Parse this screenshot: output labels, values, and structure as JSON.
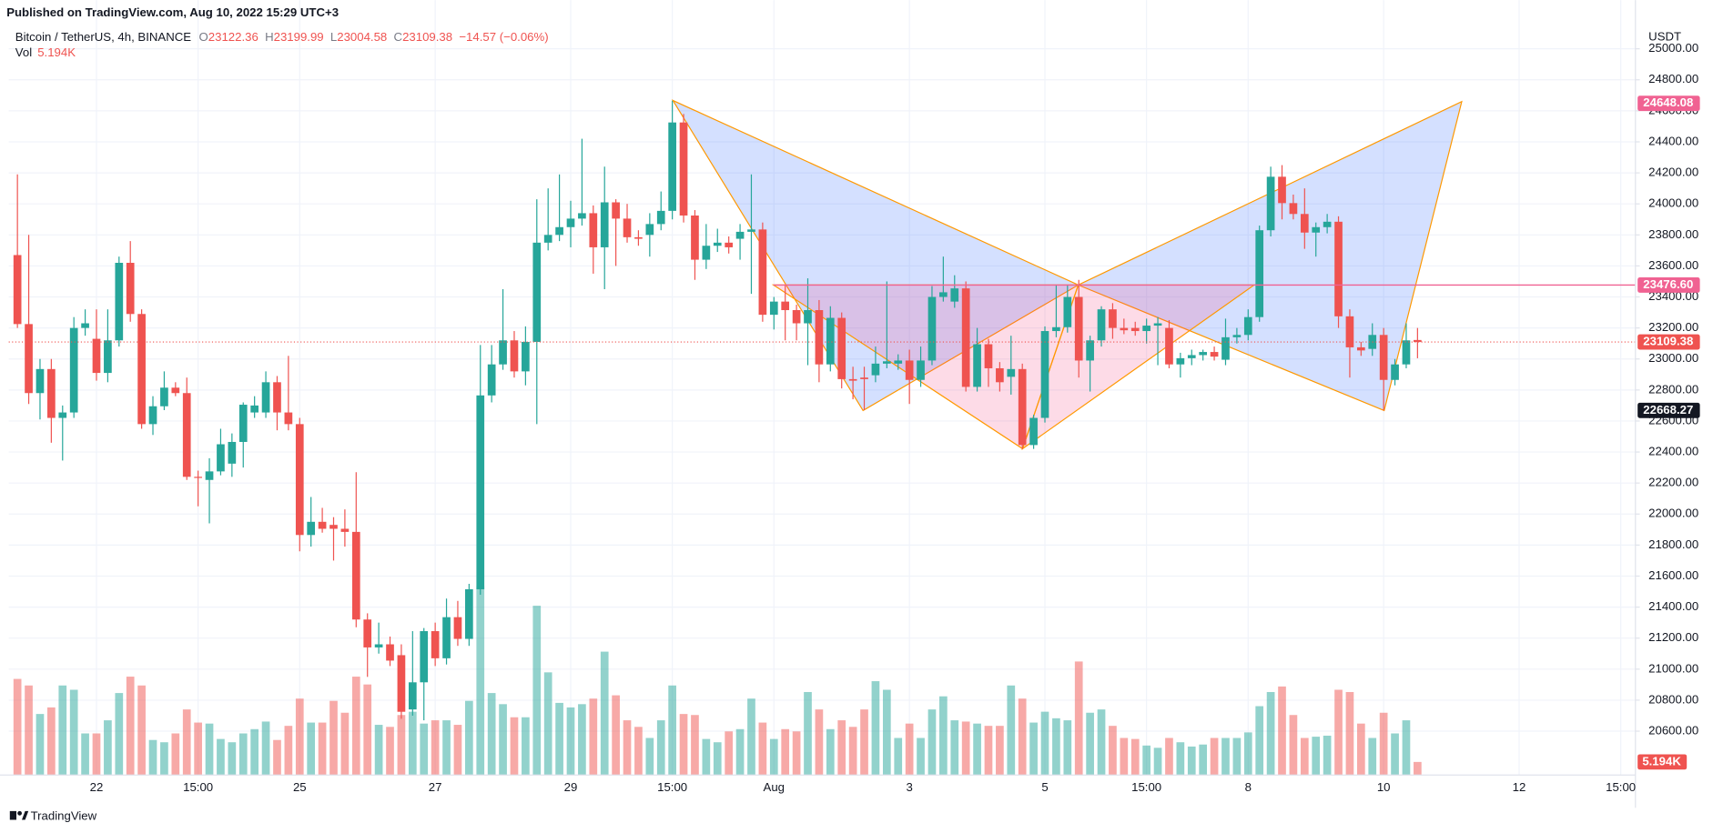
{
  "published": "Published on TradingView.com, Aug 10, 2022 15:29 UTC+3",
  "chart_data": {
    "type": "candlestick",
    "title": "Bitcoin / TetherUS, 4h, BINANCE",
    "legend": {
      "open_label": "O",
      "open": "23122.36",
      "high_label": "H",
      "high": "23199.99",
      "low_label": "L",
      "low": "23004.58",
      "close_label": "C",
      "close": "23109.38",
      "change": "−14.57 (−0.06%)",
      "volume_label": "Vol",
      "volume": "5.194K"
    },
    "currency": "USDT",
    "up_color": "#26a69a",
    "down_color": "#ef5350",
    "open": [
      23670,
      23225,
      22780,
      22935,
      22620,
      22655,
      23200,
      23130,
      22910,
      23120,
      23620,
      23290,
      22580,
      22695,
      22815,
      22780,
      22240,
      22220,
      22275,
      22325,
      22465,
      22655,
      22655,
      22850,
      22655,
      22580,
      21865,
      21950,
      21930,
      21905,
      21885,
      21320,
      21140,
      21160,
      21090,
      20740,
      20915,
      21245,
      21070,
      21335,
      21195,
      21515,
      22765,
      22965,
      23120,
      22920,
      23110,
      23750,
      23800,
      23850,
      23905,
      23940,
      23720,
      24010,
      23905,
      23785,
      23800,
      23870,
      23955,
      24525,
      23925,
      23640,
      23730,
      23750,
      23775,
      23820,
      23835,
      23285,
      23370,
      23315,
      23230,
      23315,
      22965,
      23265,
      22870,
      22880,
      22895,
      22970,
      22970,
      22990,
      22865,
      22990,
      23400,
      23370,
      23455,
      22820,
      23095,
      22940,
      22885,
      22935,
      22445,
      22620,
      23180,
      23205,
      23400,
      22990,
      23120,
      23320,
      23200,
      23200,
      23180,
      23215,
      23200,
      22965,
      23005,
      23025,
      23045,
      22995,
      23140,
      23155,
      23270,
      23830,
      24175,
      24005,
      23935,
      23815,
      23850,
      23885,
      23275,
      23075,
      23065,
      23155,
      22865,
      22965,
      23122.36
    ],
    "high": [
      24190,
      23800,
      23000,
      23000,
      22700,
      23270,
      23320,
      23320,
      23320,
      23660,
      23760,
      23320,
      22760,
      22920,
      22850,
      22880,
      22280,
      22360,
      22550,
      22520,
      22720,
      22760,
      22920,
      22890,
      23020,
      22620,
      22110,
      22040,
      21980,
      22030,
      22270,
      21360,
      21300,
      21210,
      21160,
      21245,
      21265,
      21300,
      21455,
      21440,
      21550,
      23090,
      23090,
      23450,
      23180,
      23210,
      24030,
      24100,
      24190,
      24020,
      24420,
      23990,
      24240,
      24030,
      24000,
      23830,
      23940,
      24080,
      24665,
      24580,
      23960,
      23870,
      23840,
      23790,
      23870,
      24190,
      23880,
      23400,
      23480,
      23350,
      23520,
      23380,
      23340,
      23300,
      22950,
      22950,
      23080,
      23500,
      23030,
      23060,
      23080,
      23470,
      23660,
      23540,
      23500,
      23200,
      23130,
      22980,
      23150,
      22970,
      22640,
      23210,
      23480,
      23480,
      23510,
      23150,
      23340,
      23360,
      23260,
      23240,
      23260,
      23270,
      23250,
      23040,
      23060,
      23060,
      23080,
      23260,
      23200,
      23320,
      23860,
      24240,
      24250,
      24060,
      24100,
      23880,
      23935,
      23920,
      23320,
      23110,
      23230,
      23200,
      23000,
      23230,
      23199.99
    ],
    "low": [
      23200,
      22710,
      22610,
      22460,
      22345,
      22620,
      23150,
      22860,
      22850,
      23080,
      23240,
      22550,
      22510,
      22670,
      22760,
      22220,
      22050,
      21940,
      22250,
      22240,
      22300,
      22620,
      22620,
      22540,
      22540,
      21760,
      21790,
      21880,
      21700,
      21790,
      21270,
      20950,
      21100,
      21020,
      20680,
      20700,
      20670,
      21020,
      21030,
      21150,
      21150,
      21480,
      22720,
      22930,
      22880,
      22830,
      22580,
      23700,
      23760,
      23720,
      23860,
      23550,
      23450,
      23600,
      23750,
      23730,
      23660,
      23830,
      23900,
      23880,
      23510,
      23580,
      23690,
      23680,
      23640,
      23420,
      23240,
      23190,
      23120,
      23120,
      22960,
      22850,
      22920,
      22810,
      22740,
      22670,
      22850,
      22940,
      22930,
      22710,
      22820,
      22960,
      23370,
      23330,
      22790,
      22790,
      22820,
      22790,
      22770,
      22420,
      22420,
      22590,
      23140,
      23170,
      22880,
      22790,
      23080,
      23130,
      23160,
      23150,
      23100,
      22960,
      22940,
      22880,
      22960,
      22990,
      22990,
      22960,
      23100,
      23120,
      23240,
      23790,
      23900,
      23900,
      23710,
      23660,
      23810,
      23200,
      22880,
      23020,
      23020,
      22668.27,
      22830,
      22940,
      23004.58
    ],
    "close": [
      23225,
      22780,
      22935,
      22620,
      22655,
      23200,
      23230,
      22910,
      23120,
      23620,
      23290,
      22580,
      22695,
      22815,
      22780,
      22240,
      22235,
      22275,
      22450,
      22465,
      22705,
      22700,
      22850,
      22655,
      22580,
      21865,
      21950,
      21905,
      21905,
      21885,
      21320,
      21140,
      21160,
      21055,
      20725,
      20915,
      21245,
      21070,
      21335,
      21195,
      21515,
      22765,
      22965,
      23120,
      22920,
      23110,
      23750,
      23800,
      23850,
      23905,
      23940,
      23720,
      24010,
      23905,
      23785,
      23775,
      23870,
      23955,
      24525,
      23925,
      23640,
      23730,
      23750,
      23720,
      23820,
      23835,
      23285,
      23370,
      23315,
      23230,
      23315,
      22965,
      23265,
      22870,
      22860,
      22870,
      22970,
      22985,
      22990,
      22865,
      22990,
      23400,
      23430,
      23455,
      22820,
      23095,
      22940,
      22850,
      22935,
      22445,
      22620,
      23180,
      23205,
      23400,
      22990,
      23120,
      23320,
      23200,
      23185,
      23180,
      23215,
      23230,
      22965,
      23005,
      23025,
      23045,
      23015,
      23140,
      23155,
      23270,
      23830,
      24175,
      24005,
      23935,
      23815,
      23850,
      23885,
      23275,
      23075,
      23055,
      23155,
      22865,
      22965,
      23120,
      23109.38
    ],
    "volume": [
      38.1,
      35.5,
      24.2,
      26.8,
      35.5,
      33.8,
      16.5,
      16.5,
      21.7,
      32.5,
      39.0,
      35.5,
      13.9,
      13.0,
      16.5,
      26.0,
      20.8,
      20.4,
      14.3,
      13.0,
      16.5,
      18.2,
      21.2,
      13.9,
      19.5,
      30.3,
      20.8,
      20.8,
      29.4,
      24.7,
      39.0,
      35.9,
      19.9,
      19.1,
      23.8,
      25.1,
      20.4,
      21.7,
      21.7,
      19.9,
      29.4,
      74.9,
      32.5,
      28.1,
      22.9,
      22.9,
      67.1,
      40.7,
      28.6,
      26.8,
      28.1,
      30.3,
      48.9,
      31.6,
      21.7,
      19.1,
      14.7,
      21.7,
      35.5,
      24.2,
      23.8,
      14.3,
      13.0,
      17.3,
      18.2,
      30.3,
      20.8,
      14.3,
      18.2,
      17.3,
      32.9,
      26.0,
      18.2,
      21.7,
      19.1,
      26.0,
      37.2,
      33.8,
      14.7,
      20.4,
      14.7,
      26.0,
      31.2,
      21.7,
      21.2,
      20.4,
      19.5,
      19.5,
      35.5,
      30.3,
      20.8,
      25.1,
      22.5,
      21.7,
      45.0,
      24.7,
      26.0,
      19.5,
      14.7,
      14.3,
      11.7,
      10.8,
      14.7,
      13.0,
      11.3,
      12.1,
      14.7,
      14.7,
      14.7,
      16.9,
      27.3,
      32.9,
      35.1,
      23.8,
      14.7,
      15.2,
      15.6,
      33.8,
      32.9,
      20.4,
      14.7,
      24.7,
      16.5,
      21.7,
      5.194
    ],
    "xlim": [
      -0.77,
      143.3
    ],
    "xticks": [
      {
        "value": 7,
        "label": "22"
      },
      {
        "value": 16,
        "label": "15:00"
      },
      {
        "value": 25,
        "label": "25"
      },
      {
        "value": 37,
        "label": "27"
      },
      {
        "value": 49,
        "label": "29"
      },
      {
        "value": 58,
        "label": "15:00"
      },
      {
        "value": 67,
        "label": "Aug"
      },
      {
        "value": 79,
        "label": "3"
      },
      {
        "value": 91,
        "label": "5"
      },
      {
        "value": 100,
        "label": "15:00"
      },
      {
        "value": 109,
        "label": "8"
      },
      {
        "value": 121,
        "label": "10"
      },
      {
        "value": 133,
        "label": "12"
      },
      {
        "value": 142,
        "label": "15:00"
      }
    ],
    "ylim": [
      20317,
      25117
    ],
    "yticks": [
      {
        "value": 20600,
        "label": "20600.00"
      },
      {
        "value": 20800,
        "label": "20800.00"
      },
      {
        "value": 21000,
        "label": "21000.00"
      },
      {
        "value": 21200,
        "label": "21200.00"
      },
      {
        "value": 21400,
        "label": "21400.00"
      },
      {
        "value": 21600,
        "label": "21600.00"
      },
      {
        "value": 21800,
        "label": "21800.00"
      },
      {
        "value": 22000,
        "label": "22000.00"
      },
      {
        "value": 22200,
        "label": "22200.00"
      },
      {
        "value": 22400,
        "label": "22400.00"
      },
      {
        "value": 22600,
        "label": "22600.00"
      },
      {
        "value": 22800,
        "label": "22800.00"
      },
      {
        "value": 23000,
        "label": "23000.00"
      },
      {
        "value": 23200,
        "label": "23200.00"
      },
      {
        "value": 23400,
        "label": "23400.00"
      },
      {
        "value": 23600,
        "label": "23600.00"
      },
      {
        "value": 23800,
        "label": "23800.00"
      },
      {
        "value": 24000,
        "label": "24000.00"
      },
      {
        "value": 24200,
        "label": "24200.00"
      },
      {
        "value": 24400,
        "label": "24400.00"
      },
      {
        "value": 24600,
        "label": "24600.00"
      },
      {
        "value": 24800,
        "label": "24800.00"
      },
      {
        "value": 25000,
        "label": "25000.00"
      }
    ],
    "volume_ylim": [
      0,
      295
    ],
    "price_labels": [
      {
        "value": 24648.08,
        "label": "24648.08",
        "color": "#f06292"
      },
      {
        "value": 23476.6,
        "label": "23476.60",
        "color": "#f06292"
      },
      {
        "value": 23109.38,
        "label": "23109.38",
        "color": "#ef5350"
      },
      {
        "value": 22668.27,
        "label": "22668.27",
        "color": "#131722"
      }
    ],
    "volume_marker": {
      "value": 5.194,
      "label": "5.194K",
      "color": "#ef5350"
    },
    "grid": true
  },
  "footer": "TradingView"
}
